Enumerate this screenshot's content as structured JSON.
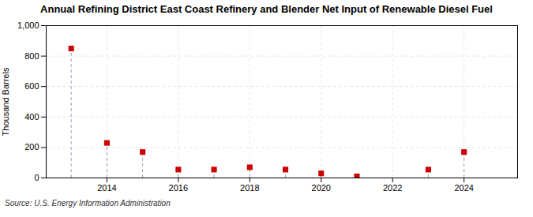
{
  "chart_data": {
    "type": "scatter",
    "title": "Annual Refining District East Coast Refinery and Blender Net Input of Renewable Diesel Fuel",
    "ylabel": "Thousand Barrels",
    "source": "Source: U.S. Energy Information Administration",
    "x": [
      2013,
      2014,
      2015,
      2016,
      2017,
      2018,
      2019,
      2020,
      2021,
      2023,
      2024
    ],
    "values": [
      850,
      230,
      170,
      55,
      55,
      70,
      55,
      30,
      10,
      55,
      170
    ],
    "color": "#cc0000",
    "marker": "square",
    "xlim": [
      2012.3,
      2025.5
    ],
    "xticks": [
      2014,
      2016,
      2018,
      2020,
      2022,
      2024
    ],
    "ylim": [
      0,
      1000
    ],
    "yticks": [
      0,
      200,
      400,
      600,
      800,
      {
        "value": 1000,
        "label": "1,000"
      }
    ],
    "grid": true
  }
}
